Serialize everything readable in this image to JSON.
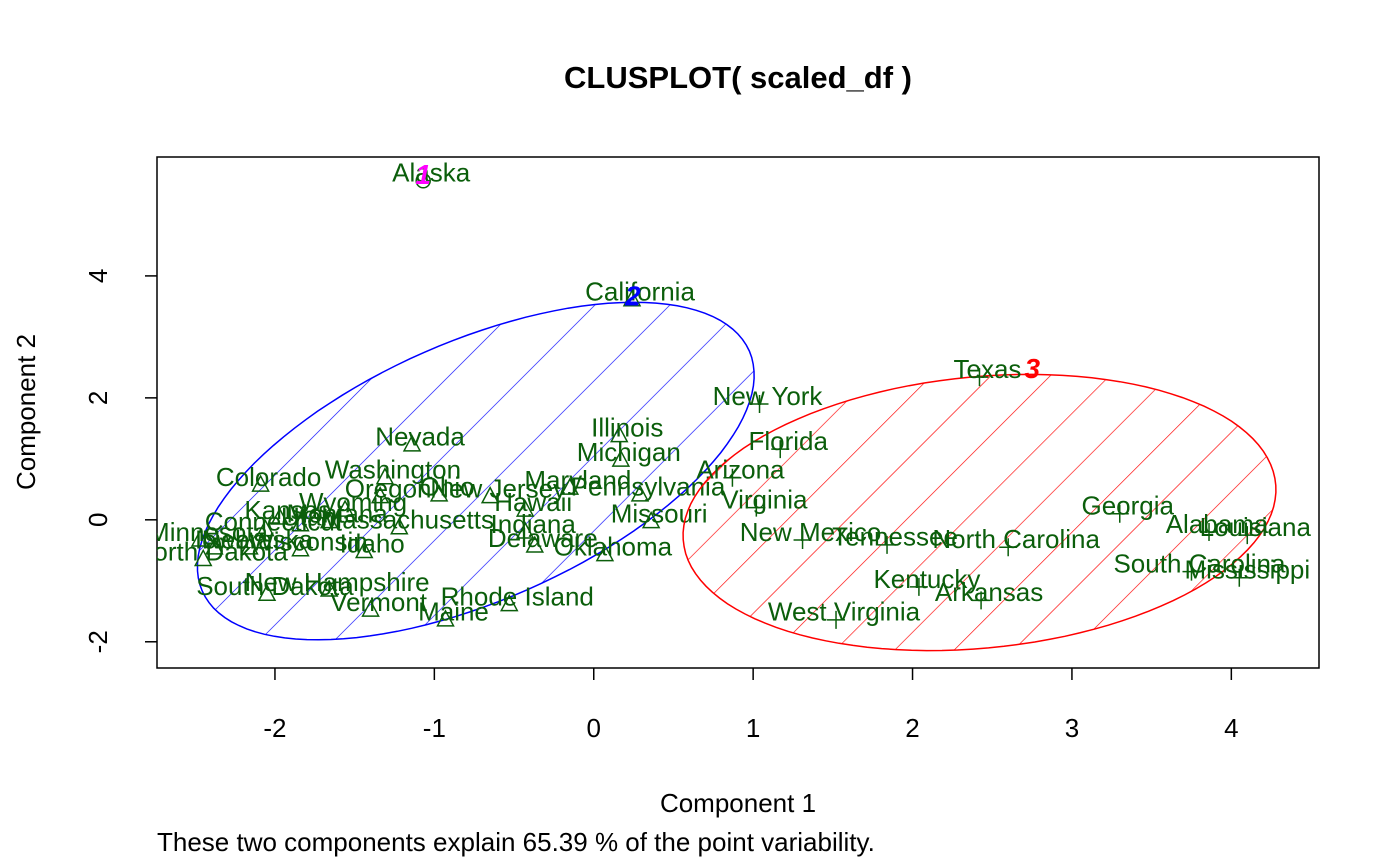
{
  "chart_data": {
    "type": "clusplot",
    "title": "CLUSPLOT( scaled_df )",
    "x_label": "Component 1",
    "y_label": "Component 2",
    "subtitle": "These two components explain 65.39 % of the point variability.",
    "xlim": [
      -2.74,
      4.55
    ],
    "ylim": [
      -2.43,
      5.95
    ],
    "xticks": [
      -2,
      -1,
      0,
      1,
      2,
      3,
      4
    ],
    "yticks": [
      -2,
      0,
      2,
      4
    ],
    "label_color": "#0b5e0b",
    "clusters": [
      {
        "label": "1",
        "color": "#ff00ff",
        "marker": "circle",
        "ellipse": {
          "center": [
            -1.07,
            5.56
          ],
          "axes": [
            0,
            0
          ],
          "angle": 0
        },
        "points": {
          "labels": [
            "Alaska"
          ],
          "x": [
            -1.07
          ],
          "y": [
            5.56
          ]
        }
      },
      {
        "label": "2",
        "color": "#0000ff",
        "marker": "triangle",
        "ellipse": {
          "center": [
            -0.74,
            0.8
          ],
          "axes": [
            2.99,
            1.33
          ],
          "angle": 65
        },
        "points": {
          "labels": [
            "California",
            "Illinois",
            "Michigan",
            "Nevada",
            "Colorado",
            "Washington",
            "Oregon",
            "New Jersey",
            "Maryland",
            "Pennsylvania",
            "Hawaii",
            "Indiana",
            "Massachusetts",
            "Missouri",
            "Delaware",
            "Oklahoma",
            "Rhode Island",
            "Maine",
            "Vermont",
            "New Hampshire",
            "North Dakota",
            "South Dakota",
            "Kansas",
            "Idaho",
            "Wisconsin",
            "Nebraska",
            "Iowa",
            "Minnesota",
            "Connecticut",
            "Wyoming",
            "Ohio",
            "Utah",
            "Montana"
          ],
          "x": [
            0.24,
            0.16,
            0.17,
            -1.14,
            -2.09,
            -1.31,
            -1.34,
            -0.65,
            -0.15,
            0.29,
            -0.43,
            -0.43,
            -1.22,
            0.36,
            -0.37,
            0.07,
            -0.53,
            -0.93,
            -1.4,
            -1.66,
            -2.45,
            -2.05,
            -1.97,
            -1.44,
            -1.84,
            -2.16,
            -2.38,
            -2.47,
            -2.06,
            -1.56,
            -0.97,
            -1.84,
            -1.66
          ],
          "y": [
            3.61,
            1.38,
            0.98,
            1.23,
            0.57,
            0.69,
            0.38,
            0.38,
            0.52,
            0.41,
            0.16,
            -0.2,
            -0.13,
            -0.03,
            -0.43,
            -0.57,
            -1.39,
            -1.64,
            -1.48,
            -1.15,
            -0.65,
            -1.22,
            0.03,
            -0.52,
            -0.49,
            -0.46,
            -0.46,
            -0.33,
            -0.16,
            0.16,
            0.41,
            -0.08,
            -0.03
          ]
        }
      },
      {
        "label": "3",
        "color": "#ff0000",
        "marker": "plus",
        "ellipse": {
          "center": [
            2.42,
            0.12
          ],
          "axes": [
            2.32,
            1.79
          ],
          "angle": 70
        },
        "points": {
          "labels": [
            "Texas",
            "New York",
            "Florida",
            "Arizona",
            "Virginia",
            "New Mexico",
            "West Virginia",
            "Tennessee",
            "North Carolina",
            "Kentucky",
            "Arkansas",
            "Georgia",
            "Alabama",
            "Louisiana",
            "South Carolina",
            "Mississippi"
          ],
          "x": [
            2.42,
            1.04,
            1.17,
            0.87,
            1.02,
            1.31,
            1.52,
            1.84,
            2.6,
            2.04,
            2.43,
            3.3,
            3.86,
            4.1,
            3.75,
            4.05
          ],
          "y": [
            2.34,
            1.9,
            1.16,
            0.69,
            0.2,
            -0.33,
            -1.64,
            -0.41,
            -0.45,
            -1.1,
            -1.32,
            0.1,
            -0.2,
            -0.25,
            -0.85,
            -0.95
          ]
        }
      }
    ]
  }
}
